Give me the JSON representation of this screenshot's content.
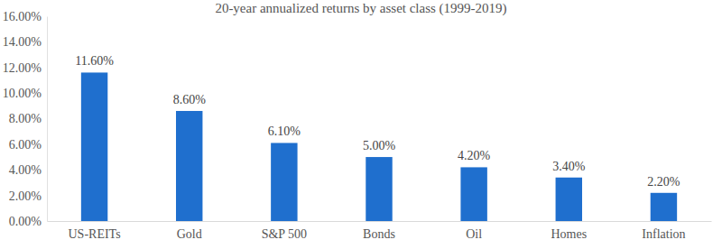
{
  "chart_data": {
    "type": "bar",
    "title": "20-year annualized returns by asset class (1999-2019)",
    "categories": [
      "US-REITs",
      "Gold",
      "S&P 500",
      "Bonds",
      "Oil",
      "Homes",
      "Inflation"
    ],
    "values": [
      11.6,
      8.6,
      6.1,
      5.0,
      4.2,
      3.4,
      2.2
    ],
    "value_labels": [
      "11.60%",
      "8.60%",
      "6.10%",
      "5.00%",
      "4.20%",
      "3.40%",
      "2.20%"
    ],
    "color": "#1f6fce",
    "ylim": [
      0,
      16
    ],
    "yticks": [
      {
        "value": 0,
        "label": "0.00%"
      },
      {
        "value": 2,
        "label": "2.00%"
      },
      {
        "value": 4,
        "label": "4.00%"
      },
      {
        "value": 6,
        "label": "6.00%"
      },
      {
        "value": 8,
        "label": "8.00%"
      },
      {
        "value": 10,
        "label": "10.00%"
      },
      {
        "value": 12,
        "label": "12.00%"
      },
      {
        "value": 14,
        "label": "14.00%"
      },
      {
        "value": 16,
        "label": "16.00%"
      }
    ],
    "grid": false,
    "data_labels": true
  }
}
